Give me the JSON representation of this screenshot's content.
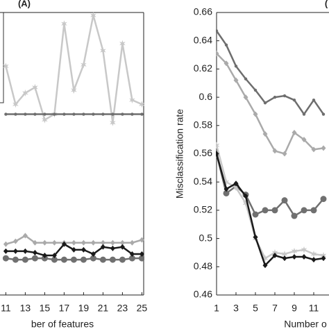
{
  "chart_data": [
    {
      "type": "line",
      "title": "(A)",
      "x_label": "ber of features",
      "x": [
        11,
        12,
        13,
        14,
        15,
        16,
        17,
        18,
        19,
        20,
        21,
        22,
        23,
        24,
        25
      ],
      "xlim": [
        10.4,
        25.2
      ],
      "xticks": [
        11,
        13,
        15,
        17,
        19,
        21,
        23,
        25
      ],
      "ylim": [
        0.46,
        0.66
      ],
      "series": [
        {
          "color": "#c8c8c8",
          "marker": "star",
          "values": [
            0.622,
            0.595,
            0.603,
            0.607,
            0.584,
            0.588,
            0.652,
            0.605,
            0.623,
            0.658,
            0.633,
            0.582,
            0.638,
            0.598,
            0.595
          ]
        },
        {
          "color": "#6e6e6e",
          "marker": "dot",
          "values": [
            0.588,
            0.588,
            0.588,
            0.588,
            0.588,
            0.588,
            0.588,
            0.588,
            0.588,
            0.588,
            0.588,
            0.588,
            0.588,
            0.588,
            0.588
          ]
        },
        {
          "color": "#aaaaaa",
          "marker": "diamond",
          "values": [
            0.496,
            0.498,
            0.502,
            0.497,
            0.497,
            0.497,
            0.497,
            0.497,
            0.497,
            0.497,
            0.497,
            0.497,
            0.497,
            0.497,
            0.499
          ]
        },
        {
          "color": "#707070",
          "marker": "circle",
          "values": [
            0.486,
            0.485,
            0.485,
            0.486,
            0.486,
            0.485,
            0.485,
            0.485,
            0.485,
            0.486,
            0.485,
            0.485,
            0.485,
            0.486,
            0.486
          ]
        },
        {
          "color": "#1a1a1a",
          "marker": "diamond",
          "values": [
            0.491,
            0.491,
            0.491,
            0.49,
            0.488,
            0.488,
            0.496,
            0.492,
            0.492,
            0.489,
            0.494,
            0.493,
            0.494,
            0.489,
            0.489
          ]
        }
      ]
    },
    {
      "type": "line",
      "title": "(",
      "x_label": "Number o",
      "y_label": "Misclassification rate",
      "x": [
        1,
        2,
        3,
        4,
        5,
        6,
        7,
        8,
        9,
        10,
        11,
        12
      ],
      "xlim": [
        1,
        13
      ],
      "xticks": [
        1,
        3,
        5,
        7,
        9,
        11
      ],
      "ylim": [
        0.46,
        0.66
      ],
      "yticks": [
        0.46,
        0.48,
        0.5,
        0.52,
        0.54,
        0.56,
        0.58,
        0.6,
        0.62,
        0.64,
        0.66
      ],
      "series": [
        {
          "color": "#6e6e6e",
          "marker": "dot",
          "values": [
            0.647,
            0.637,
            0.622,
            0.613,
            0.605,
            0.596,
            0.6,
            0.601,
            0.598,
            0.588,
            0.598,
            0.588
          ]
        },
        {
          "color": "#aaaaaa",
          "marker": "diamond",
          "values": [
            0.631,
            0.624,
            0.612,
            0.6,
            0.588,
            0.574,
            0.562,
            0.56,
            0.575,
            0.57,
            0.563,
            0.564
          ]
        },
        {
          "color": "#707070",
          "marker": "circle",
          "values": [
            0.56,
            0.532,
            0.537,
            0.531,
            0.517,
            0.52,
            0.52,
            0.527,
            0.516,
            0.52,
            0.52,
            0.528
          ]
        },
        {
          "color": "#c8c8c8",
          "marker": "star",
          "values": [
            0.566,
            0.54,
            0.536,
            0.525,
            0.5,
            0.486,
            0.49,
            0.489,
            0.491,
            0.492,
            0.489,
            0.488
          ]
        },
        {
          "color": "#1a1a1a",
          "marker": "diamond",
          "values": [
            0.56,
            0.535,
            0.539,
            0.53,
            0.501,
            0.481,
            0.488,
            0.486,
            0.487,
            0.487,
            0.485,
            0.486
          ]
        }
      ]
    }
  ]
}
